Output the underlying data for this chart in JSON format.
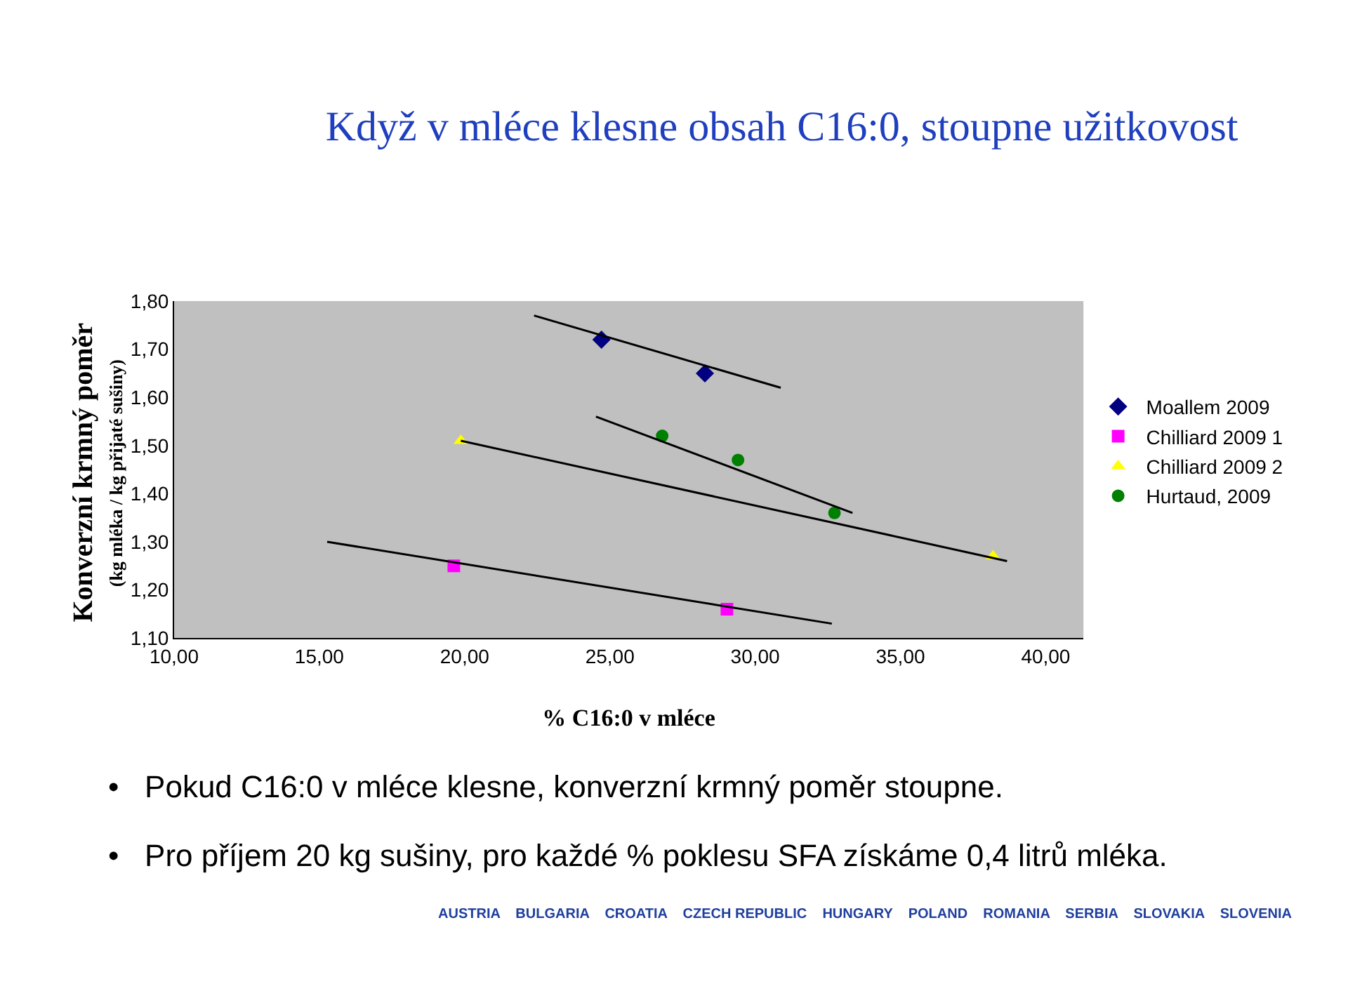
{
  "chart_data": {
    "type": "scatter",
    "title": "Když v mléce klesne obsah C16:0, stoupne užitkovost",
    "xlabel": "% C16:0 v mléce",
    "ylabel": "Konverzní krmný poměr",
    "annotations": [
      "(kg mléka / kg přijaté sušiny)",
      "•   Pokud C16:0 v mléce klesne, konverzní krmný poměr stoupne.",
      "•   Pro příjem 20 kg sušiny, pro každé % poklesu SFA získáme 0,4 litrů mléka.",
      "AUSTRIA    BULGARIA    CROATIA    CZECH REPUBLIC    HUNGARY    POLAND    ROMANIA    SERBIA    SLOVAKIA    SLOVENIA"
    ],
    "series": [
      {
        "name": "Moallem 2009",
        "color": "#000080",
        "marker": "diamond",
        "x": [
          24.71,
          28.27
        ],
        "values": [
          1.72,
          1.65
        ]
      },
      {
        "name": "Chilliard 2009 1",
        "color": "#ff00ff",
        "marker": "square",
        "x": [
          19.63,
          29.03
        ],
        "values": [
          1.25,
          1.16
        ]
      },
      {
        "name": "Chilliard 2009 2",
        "color": "#ffff00",
        "marker": "triangle",
        "x": [
          19.87,
          38.19
        ],
        "values": [
          1.51,
          1.27
        ]
      },
      {
        "name": "Hurtaud, 2009",
        "color": "#008000",
        "marker": "circle",
        "x": [
          26.8,
          29.41,
          32.73
        ],
        "values": [
          1.52,
          1.47,
          1.36
        ]
      },
      {
        "type": "line",
        "color": "#000000",
        "marker": "none",
        "x": [
          22.39,
          30.88
        ],
        "values": [
          1.77,
          1.62
        ]
      },
      {
        "type": "line",
        "color": "#000000",
        "marker": "none",
        "x": [
          15.27,
          32.64
        ],
        "values": [
          1.3,
          1.13
        ]
      },
      {
        "type": "line",
        "color": "#000000",
        "marker": "none",
        "x": [
          19.87,
          38.67
        ],
        "values": [
          1.51,
          1.26
        ]
      },
      {
        "type": "line",
        "color": "#000000",
        "marker": "none",
        "x": [
          24.52,
          33.35
        ],
        "values": [
          1.56,
          1.36
        ]
      }
    ],
    "xlim": [
      10,
      41.3
    ],
    "xticks": [
      {
        "value": 10,
        "label": "10,00"
      },
      {
        "value": 15,
        "label": "15,00"
      },
      {
        "value": 20,
        "label": "20,00"
      },
      {
        "value": 25,
        "label": "25,00"
      },
      {
        "value": 30,
        "label": "30,00"
      },
      {
        "value": 35,
        "label": "35,00"
      },
      {
        "value": 40,
        "label": "40,00"
      }
    ],
    "ylim": [
      1.1,
      1.8
    ],
    "yticks": [
      {
        "value": 1.1,
        "label": "1,10"
      },
      {
        "value": 1.2,
        "label": "1,20"
      },
      {
        "value": 1.3,
        "label": "1,30"
      },
      {
        "value": 1.4,
        "label": "1,40"
      },
      {
        "value": 1.5,
        "label": "1,50"
      },
      {
        "value": 1.6,
        "label": "1,60"
      },
      {
        "value": 1.7,
        "label": "1,70"
      },
      {
        "value": 1.8,
        "label": "1,80"
      }
    ],
    "grid": false,
    "legend": "right"
  }
}
